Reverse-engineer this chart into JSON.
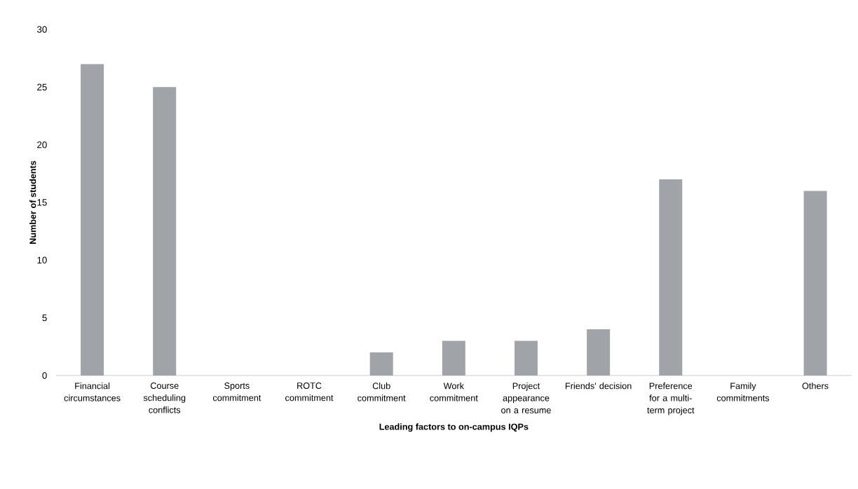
{
  "chart_data": {
    "type": "bar",
    "xlabel": "Leading factors to on-campus IQPs",
    "ylabel": "Number of students",
    "categories": [
      "Financial circumstances",
      "Course scheduling conflicts",
      "Sports commitment",
      "ROTC commitment",
      "Club commitment",
      "Work commitment",
      "Project appearance on a resume",
      "Friends' decision",
      "Preference for a multi-term project",
      "Family commitments",
      "Others"
    ],
    "values": [
      27,
      25,
      0,
      0,
      2,
      3,
      3,
      4,
      17,
      0,
      16
    ],
    "color": "#a0a3a8",
    "ylim": [
      0,
      30
    ],
    "yticks": [
      0,
      5,
      10,
      15,
      20,
      25,
      30
    ]
  }
}
